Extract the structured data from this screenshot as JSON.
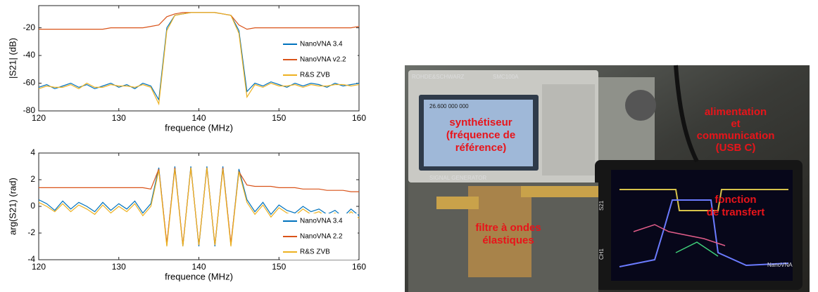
{
  "chart_data": [
    {
      "type": "line",
      "ylabel": "|S21| (dB)",
      "xlabel": "frequence (MHz)",
      "x": [
        120,
        121,
        122,
        123,
        124,
        125,
        126,
        127,
        128,
        129,
        130,
        131,
        132,
        133,
        134,
        135,
        136,
        137,
        138,
        139,
        140,
        141,
        142,
        143,
        144,
        145,
        146,
        147,
        148,
        149,
        150,
        151,
        152,
        153,
        154,
        155,
        156,
        157,
        158,
        159,
        160
      ],
      "series": [
        {
          "name": "NanoVNA 3.4",
          "color": "#0072bd",
          "values": [
            -63,
            -61,
            -64,
            -62,
            -60,
            -63,
            -61,
            -64,
            -62,
            -60,
            -63,
            -61,
            -64,
            -60,
            -62,
            -72,
            -20,
            -11,
            -10,
            -9,
            -9,
            -9,
            -9,
            -10,
            -11,
            -22,
            -66,
            -60,
            -62,
            -59,
            -61,
            -63,
            -60,
            -62,
            -60,
            -61,
            -63,
            -60,
            -62,
            -61,
            -60
          ]
        },
        {
          "name": "NanoVNA v2.2",
          "color": "#d95319",
          "values": [
            -21,
            -21,
            -21,
            -21,
            -21,
            -21,
            -21,
            -21,
            -21,
            -20,
            -20,
            -20,
            -20,
            -20,
            -19,
            -18,
            -12,
            -10,
            -9,
            -9,
            -9,
            -9,
            -9,
            -10,
            -11,
            -18,
            -21,
            -20,
            -20,
            -20,
            -20,
            -20,
            -20,
            -20,
            -20,
            -20,
            -20,
            -20,
            -20,
            -20,
            -19
          ]
        },
        {
          "name": "R&S ZVB",
          "color": "#edb120",
          "values": [
            -64,
            -62,
            -63,
            -63,
            -61,
            -64,
            -60,
            -63,
            -63,
            -61,
            -62,
            -62,
            -63,
            -61,
            -63,
            -75,
            -22,
            -11,
            -10,
            -9,
            -9,
            -9,
            -9,
            -10,
            -11,
            -24,
            -70,
            -61,
            -63,
            -60,
            -62,
            -62,
            -61,
            -63,
            -61,
            -62,
            -62,
            -61,
            -61,
            -62,
            -61
          ]
        }
      ],
      "xlim": [
        120,
        160
      ],
      "xticks": [
        120,
        130,
        140,
        150,
        160
      ],
      "ylim": [
        -80,
        -4
      ],
      "yticks": [
        -80,
        -60,
        -40,
        -20
      ],
      "grid": false,
      "legend": "center right"
    },
    {
      "type": "line",
      "ylabel": "arg(S21) (rad)",
      "xlabel": "frequence (MHz)",
      "x": [
        120,
        121,
        122,
        123,
        124,
        125,
        126,
        127,
        128,
        129,
        130,
        131,
        132,
        133,
        134,
        135,
        136,
        137,
        138,
        139,
        140,
        141,
        142,
        143,
        144,
        145,
        146,
        147,
        148,
        149,
        150,
        151,
        152,
        153,
        154,
        155,
        156,
        157,
        158,
        159,
        160
      ],
      "series": [
        {
          "name": "NanoVNA 3.4",
          "color": "#0072bd",
          "values": [
            0.5,
            0.2,
            -0.3,
            0.4,
            -0.2,
            0.3,
            0,
            -0.4,
            0.3,
            -0.3,
            0.2,
            -0.2,
            0.4,
            -0.5,
            0.2,
            2.9,
            -2.9,
            3,
            -3,
            3,
            -3,
            3,
            -3,
            3,
            -2.9,
            2.8,
            0.5,
            -0.4,
            0.3,
            -0.6,
            0.1,
            -0.3,
            -0.5,
            0,
            -0.4,
            -0.2,
            -0.6,
            -0.3,
            -0.8,
            -0.2,
            -0.7
          ]
        },
        {
          "name": "NanoVNA 2.2",
          "color": "#d95319",
          "values": [
            1.4,
            1.4,
            1.4,
            1.4,
            1.4,
            1.4,
            1.4,
            1.4,
            1.4,
            1.4,
            1.4,
            1.4,
            1.4,
            1.4,
            1.3,
            2.8,
            -2.8,
            2.9,
            -2.9,
            2.9,
            -2.9,
            2.9,
            -2.9,
            2.9,
            -2.8,
            2.6,
            1.6,
            1.5,
            1.5,
            1.5,
            1.4,
            1.4,
            1.4,
            1.3,
            1.3,
            1.3,
            1.2,
            1.2,
            1.2,
            1.1,
            1.1
          ]
        },
        {
          "name": "R&S ZVB",
          "color": "#edb120",
          "values": [
            0.3,
            0,
            -0.4,
            0.2,
            -0.4,
            0.1,
            -0.2,
            -0.6,
            0.1,
            -0.5,
            0,
            -0.4,
            0.2,
            -0.7,
            0,
            2.7,
            -3,
            2.8,
            -3,
            2.9,
            -2.9,
            2.9,
            -2.9,
            2.8,
            -3,
            2.6,
            0.3,
            -0.6,
            0.1,
            -0.8,
            -0.1,
            -0.5,
            -0.7,
            -0.2,
            -0.6,
            -0.4,
            -0.8,
            -0.5,
            -1,
            -0.4,
            -0.9
          ]
        }
      ],
      "xlim": [
        120,
        160
      ],
      "xticks": [
        120,
        130,
        140,
        150,
        160
      ],
      "ylim": [
        -4,
        4
      ],
      "yticks": [
        -4,
        -2,
        0,
        2,
        4
      ],
      "grid": false,
      "legend": "lower right"
    }
  ],
  "photo": {
    "annotations": [
      {
        "lines": [
          "synthétiseur",
          "(fréquence de",
          "référence)"
        ]
      },
      {
        "lines": [
          "alimentation",
          "et",
          "communication",
          "(USB C)"
        ]
      },
      {
        "lines": [
          "fonction",
          "de transfert"
        ]
      },
      {
        "lines": [
          "filtre à ondes",
          "élastiques"
        ]
      }
    ],
    "device_labels": [
      "ROHDE&SCHWARZ",
      "SMC100A",
      "26.600 000 000",
      "SIGNAL GENERATOR",
      "NanoVNA",
      "S21",
      "CH1"
    ]
  }
}
